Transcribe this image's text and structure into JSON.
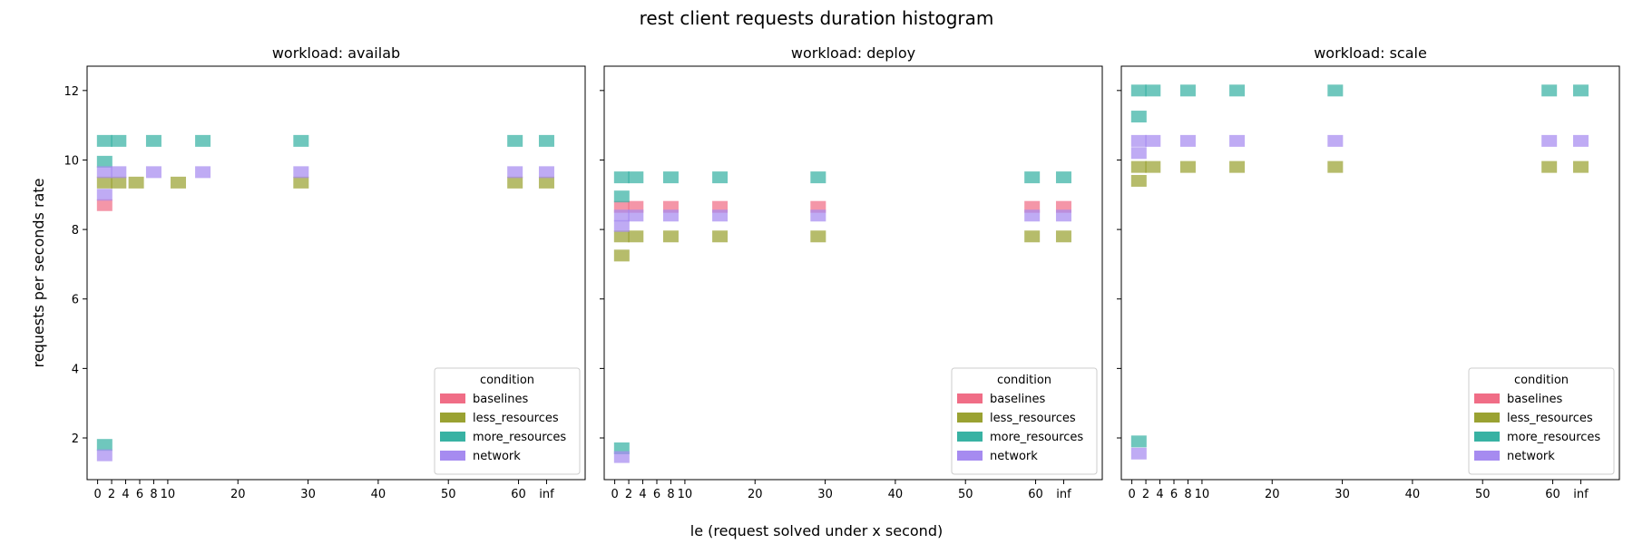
{
  "figure": {
    "title": "rest client requests duration histogram",
    "xlabel": "le (request solved under x second)",
    "ylabel": "requests per seconds rate"
  },
  "chart_data": {
    "type": "heatmap",
    "title": "rest client requests duration histogram",
    "xlabel": "le (request solved under x second)",
    "ylabel": "requests per seconds rate",
    "x_ticks": [
      "0",
      "2",
      "4",
      "6",
      "8",
      "10",
      "20",
      "30",
      "40",
      "50",
      "60",
      "inf"
    ],
    "y_ticks": [
      "2",
      "4",
      "6",
      "8",
      "10",
      "12"
    ],
    "ylim": [
      0.8,
      12.7
    ],
    "xlim": [
      -1.5,
      69.5
    ],
    "legend": {
      "title": "condition",
      "placement": "lower-right",
      "entries": [
        "baselines",
        "less_resources",
        "more_resources",
        "network"
      ]
    },
    "colors": {
      "baselines": "#f06d86",
      "less_resources": "#9aa232",
      "more_resources": "#38b2a3",
      "network": "#a68bf0"
    },
    "le_buckets": [
      1,
      3,
      5.5,
      8,
      11.5,
      15,
      29,
      59.5,
      64
    ],
    "panels": [
      {
        "title": "workload: availab",
        "series": [
          {
            "name": "baselines",
            "points": [
              {
                "x": 1,
                "y": 8.7
              }
            ]
          },
          {
            "name": "less_resources",
            "points": [
              {
                "x": 1,
                "y": 9.35
              },
              {
                "x": 3,
                "y": 9.35
              },
              {
                "x": 5.5,
                "y": 9.35
              },
              {
                "x": 11.5,
                "y": 9.35
              },
              {
                "x": 29,
                "y": 9.35
              },
              {
                "x": 59.5,
                "y": 9.35
              },
              {
                "x": 64,
                "y": 9.35
              }
            ]
          },
          {
            "name": "more_resources",
            "points": [
              {
                "x": 1,
                "y": 1.8
              },
              {
                "x": 1,
                "y": 9.95
              },
              {
                "x": 1,
                "y": 10.55
              },
              {
                "x": 3,
                "y": 10.55
              },
              {
                "x": 8,
                "y": 10.55
              },
              {
                "x": 15,
                "y": 10.55
              },
              {
                "x": 29,
                "y": 10.55
              },
              {
                "x": 59.5,
                "y": 10.55
              },
              {
                "x": 64,
                "y": 10.55
              }
            ]
          },
          {
            "name": "network",
            "points": [
              {
                "x": 1,
                "y": 1.5
              },
              {
                "x": 1,
                "y": 9.0
              },
              {
                "x": 1,
                "y": 9.65
              },
              {
                "x": 3,
                "y": 9.65
              },
              {
                "x": 8,
                "y": 9.65
              },
              {
                "x": 15,
                "y": 9.65
              },
              {
                "x": 29,
                "y": 9.65
              },
              {
                "x": 59.5,
                "y": 9.65
              },
              {
                "x": 64,
                "y": 9.65
              }
            ]
          }
        ]
      },
      {
        "title": "workload: deploy",
        "series": [
          {
            "name": "baselines",
            "points": [
              {
                "x": 1,
                "y": 8.65
              },
              {
                "x": 3,
                "y": 8.65
              },
              {
                "x": 8,
                "y": 8.65
              },
              {
                "x": 15,
                "y": 8.65
              },
              {
                "x": 29,
                "y": 8.65
              },
              {
                "x": 59.5,
                "y": 8.65
              },
              {
                "x": 64,
                "y": 8.65
              }
            ]
          },
          {
            "name": "less_resources",
            "points": [
              {
                "x": 1,
                "y": 7.25
              },
              {
                "x": 1,
                "y": 7.8
              },
              {
                "x": 3,
                "y": 7.8
              },
              {
                "x": 8,
                "y": 7.8
              },
              {
                "x": 15,
                "y": 7.8
              },
              {
                "x": 29,
                "y": 7.8
              },
              {
                "x": 59.5,
                "y": 7.8
              },
              {
                "x": 64,
                "y": 7.8
              }
            ]
          },
          {
            "name": "more_resources",
            "points": [
              {
                "x": 1,
                "y": 1.7
              },
              {
                "x": 1,
                "y": 8.95
              },
              {
                "x": 1,
                "y": 9.5
              },
              {
                "x": 3,
                "y": 9.5
              },
              {
                "x": 8,
                "y": 9.5
              },
              {
                "x": 15,
                "y": 9.5
              },
              {
                "x": 29,
                "y": 9.5
              },
              {
                "x": 59.5,
                "y": 9.5
              },
              {
                "x": 64,
                "y": 9.5
              }
            ]
          },
          {
            "name": "network",
            "points": [
              {
                "x": 1,
                "y": 1.45
              },
              {
                "x": 1,
                "y": 8.1
              },
              {
                "x": 1,
                "y": 8.4
              },
              {
                "x": 3,
                "y": 8.4
              },
              {
                "x": 8,
                "y": 8.4
              },
              {
                "x": 15,
                "y": 8.4
              },
              {
                "x": 29,
                "y": 8.4
              },
              {
                "x": 59.5,
                "y": 8.4
              },
              {
                "x": 64,
                "y": 8.4
              }
            ]
          }
        ]
      },
      {
        "title": "workload: scale",
        "series": [
          {
            "name": "less_resources",
            "points": [
              {
                "x": 1,
                "y": 9.4
              },
              {
                "x": 1,
                "y": 9.8
              },
              {
                "x": 3,
                "y": 9.8
              },
              {
                "x": 8,
                "y": 9.8
              },
              {
                "x": 15,
                "y": 9.8
              },
              {
                "x": 29,
                "y": 9.8
              },
              {
                "x": 59.5,
                "y": 9.8
              },
              {
                "x": 64,
                "y": 9.8
              }
            ]
          },
          {
            "name": "more_resources",
            "points": [
              {
                "x": 1,
                "y": 1.9
              },
              {
                "x": 1,
                "y": 11.25
              },
              {
                "x": 1,
                "y": 12.0
              },
              {
                "x": 3,
                "y": 12.0
              },
              {
                "x": 8,
                "y": 12.0
              },
              {
                "x": 15,
                "y": 12.0
              },
              {
                "x": 29,
                "y": 12.0
              },
              {
                "x": 59.5,
                "y": 12.0
              },
              {
                "x": 64,
                "y": 12.0
              }
            ]
          },
          {
            "name": "network",
            "points": [
              {
                "x": 1,
                "y": 1.55
              },
              {
                "x": 1,
                "y": 10.2
              },
              {
                "x": 1,
                "y": 10.55
              },
              {
                "x": 3,
                "y": 10.55
              },
              {
                "x": 8,
                "y": 10.55
              },
              {
                "x": 15,
                "y": 10.55
              },
              {
                "x": 29,
                "y": 10.55
              },
              {
                "x": 59.5,
                "y": 10.55
              },
              {
                "x": 64,
                "y": 10.55
              }
            ]
          }
        ]
      }
    ]
  }
}
